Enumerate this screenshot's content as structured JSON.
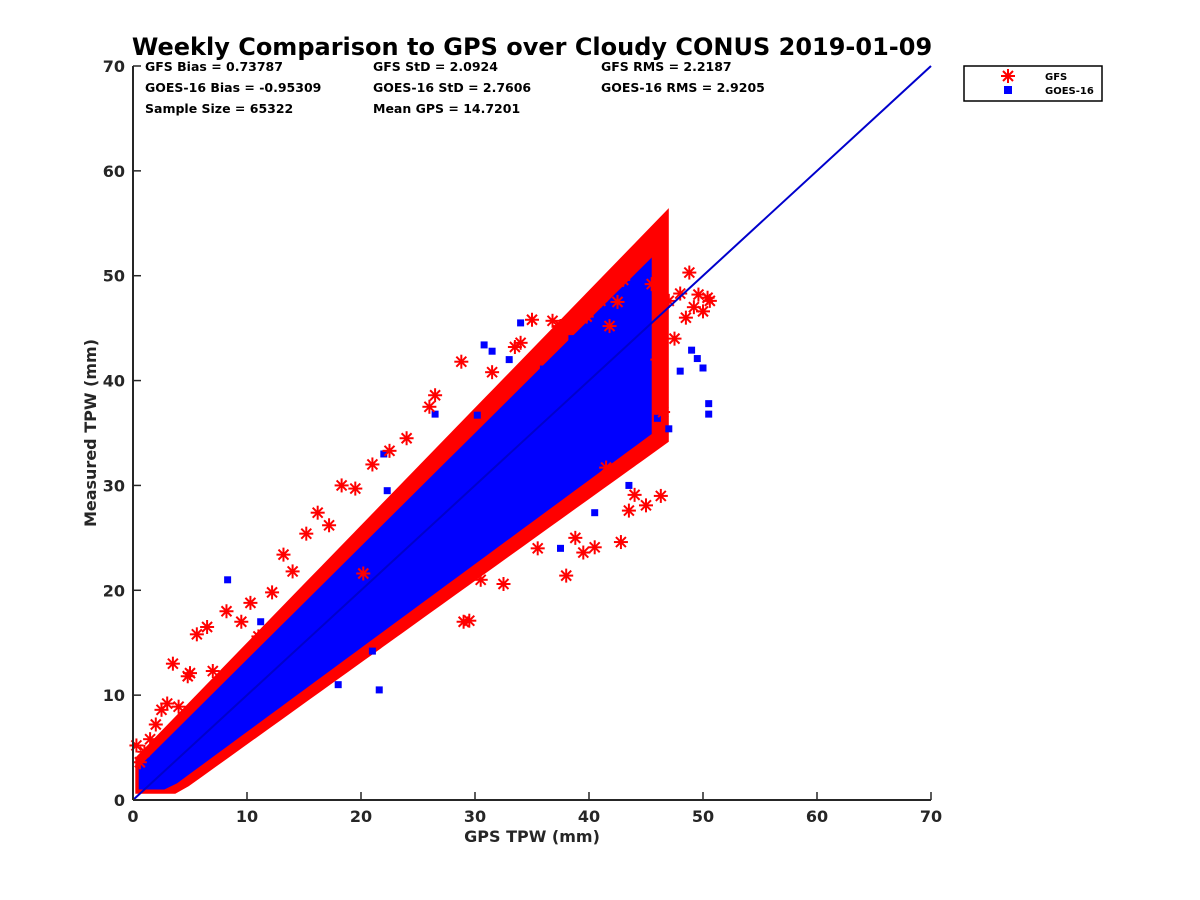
{
  "chart_data": {
    "type": "scatter",
    "title": "Weekly Comparison to GPS over Cloudy CONUS 2019-01-09",
    "xlabel": "GPS TPW (mm)",
    "ylabel": "Measured TPW (mm)",
    "xlim": [
      0,
      70
    ],
    "ylim": [
      0,
      70
    ],
    "xticks": [
      "0",
      "10",
      "20",
      "30",
      "40",
      "50",
      "60",
      "70"
    ],
    "yticks": [
      "0",
      "10",
      "20",
      "30",
      "40",
      "50",
      "60",
      "70"
    ],
    "grid": false,
    "legend_position": "top-right outside",
    "stats": [
      "GFS Bias = 0.73787",
      "GOES-16 Bias = -0.95309",
      "Sample Size = 65322",
      "GFS StD = 2.0924",
      "GOES-16 StD = 2.7606",
      "Mean GPS = 14.7201",
      "GFS RMS = 2.2187",
      "GOES-16 RMS = 2.9205"
    ],
    "one_to_one_line": {
      "from": [
        0,
        0
      ],
      "to": [
        70,
        70
      ],
      "color": "#0000cc"
    },
    "series": [
      {
        "name": "GFS",
        "marker": "asterisk",
        "color": "#ff0000",
        "points": [
          [
            0.3,
            5.2
          ],
          [
            0.6,
            3.6
          ],
          [
            1.0,
            4.6
          ],
          [
            1.5,
            5.8
          ],
          [
            2.0,
            7.2
          ],
          [
            2.5,
            8.6
          ],
          [
            3.0,
            9.2
          ],
          [
            3.5,
            13.0
          ],
          [
            4.0,
            8.9
          ],
          [
            4.8,
            11.8
          ],
          [
            5.0,
            12.1
          ],
          [
            5.6,
            15.8
          ],
          [
            6.5,
            16.5
          ],
          [
            7.0,
            12.3
          ],
          [
            8.2,
            18.0
          ],
          [
            9.5,
            17.0
          ],
          [
            10.3,
            18.8
          ],
          [
            11.0,
            15.6
          ],
          [
            12.2,
            19.8
          ],
          [
            13.2,
            23.4
          ],
          [
            14.0,
            21.8
          ],
          [
            15.2,
            25.4
          ],
          [
            16.2,
            27.4
          ],
          [
            17.2,
            26.2
          ],
          [
            18.3,
            30.0
          ],
          [
            19.5,
            29.7
          ],
          [
            20.2,
            21.6
          ],
          [
            21.0,
            32.0
          ],
          [
            22.5,
            33.3
          ],
          [
            24.0,
            34.5
          ],
          [
            26.0,
            37.5
          ],
          [
            26.5,
            38.6
          ],
          [
            28.8,
            41.8
          ],
          [
            29.0,
            17.0
          ],
          [
            29.5,
            17.1
          ],
          [
            30.5,
            21.0
          ],
          [
            31.5,
            40.8
          ],
          [
            32.5,
            20.6
          ],
          [
            33.5,
            43.2
          ],
          [
            34.0,
            43.6
          ],
          [
            35.0,
            45.8
          ],
          [
            35.5,
            24.0
          ],
          [
            36.8,
            45.7
          ],
          [
            37.5,
            45.2
          ],
          [
            38.0,
            21.4
          ],
          [
            38.8,
            25.0
          ],
          [
            39.5,
            23.6
          ],
          [
            39.8,
            46.1
          ],
          [
            40.5,
            24.1
          ],
          [
            41.0,
            47.6
          ],
          [
            41.5,
            31.7
          ],
          [
            41.8,
            45.2
          ],
          [
            42.5,
            47.5
          ],
          [
            42.8,
            24.6
          ],
          [
            43.0,
            49.6
          ],
          [
            43.5,
            27.6
          ],
          [
            44.0,
            29.1
          ],
          [
            44.5,
            33.1
          ],
          [
            45.0,
            28.1
          ],
          [
            45.5,
            49.2
          ],
          [
            46.0,
            42.0
          ],
          [
            46.3,
            29.0
          ],
          [
            46.5,
            37.0
          ],
          [
            47.0,
            47.6
          ],
          [
            47.5,
            44.0
          ],
          [
            48.0,
            48.3
          ],
          [
            48.5,
            46.0
          ],
          [
            48.8,
            50.3
          ],
          [
            49.2,
            47.0
          ],
          [
            49.6,
            48.2
          ],
          [
            50.0,
            46.6
          ],
          [
            50.4,
            47.9
          ],
          [
            50.6,
            47.6
          ]
        ]
      },
      {
        "name": "GOES-16",
        "marker": "square",
        "color": "#0000ff",
        "points": [
          [
            8.3,
            21.0
          ],
          [
            11.2,
            17.0
          ],
          [
            14.0,
            14.2
          ],
          [
            18.0,
            11.0
          ],
          [
            21.0,
            14.2
          ],
          [
            21.6,
            10.5
          ],
          [
            22.0,
            33.0
          ],
          [
            22.3,
            29.5
          ],
          [
            26.0,
            27.3
          ],
          [
            26.5,
            36.8
          ],
          [
            30.2,
            36.7
          ],
          [
            30.8,
            43.4
          ],
          [
            31.5,
            42.8
          ],
          [
            33.0,
            42.0
          ],
          [
            34.0,
            45.5
          ],
          [
            36.0,
            41.1
          ],
          [
            37.5,
            24.0
          ],
          [
            38.5,
            44.0
          ],
          [
            40.5,
            27.4
          ],
          [
            42.0,
            44.8
          ],
          [
            43.5,
            30.0
          ],
          [
            44.0,
            40.0
          ],
          [
            45.0,
            39.0
          ],
          [
            46.0,
            36.4
          ],
          [
            47.0,
            35.4
          ],
          [
            48.0,
            40.9
          ],
          [
            49.0,
            42.9
          ],
          [
            50.0,
            41.2
          ],
          [
            50.5,
            37.8
          ],
          [
            50.5,
            36.8
          ],
          [
            49.5,
            42.1
          ],
          [
            36.9,
            35.5
          ],
          [
            39.5,
            31.0
          ],
          [
            42.5,
            35.0
          ]
        ]
      }
    ]
  }
}
